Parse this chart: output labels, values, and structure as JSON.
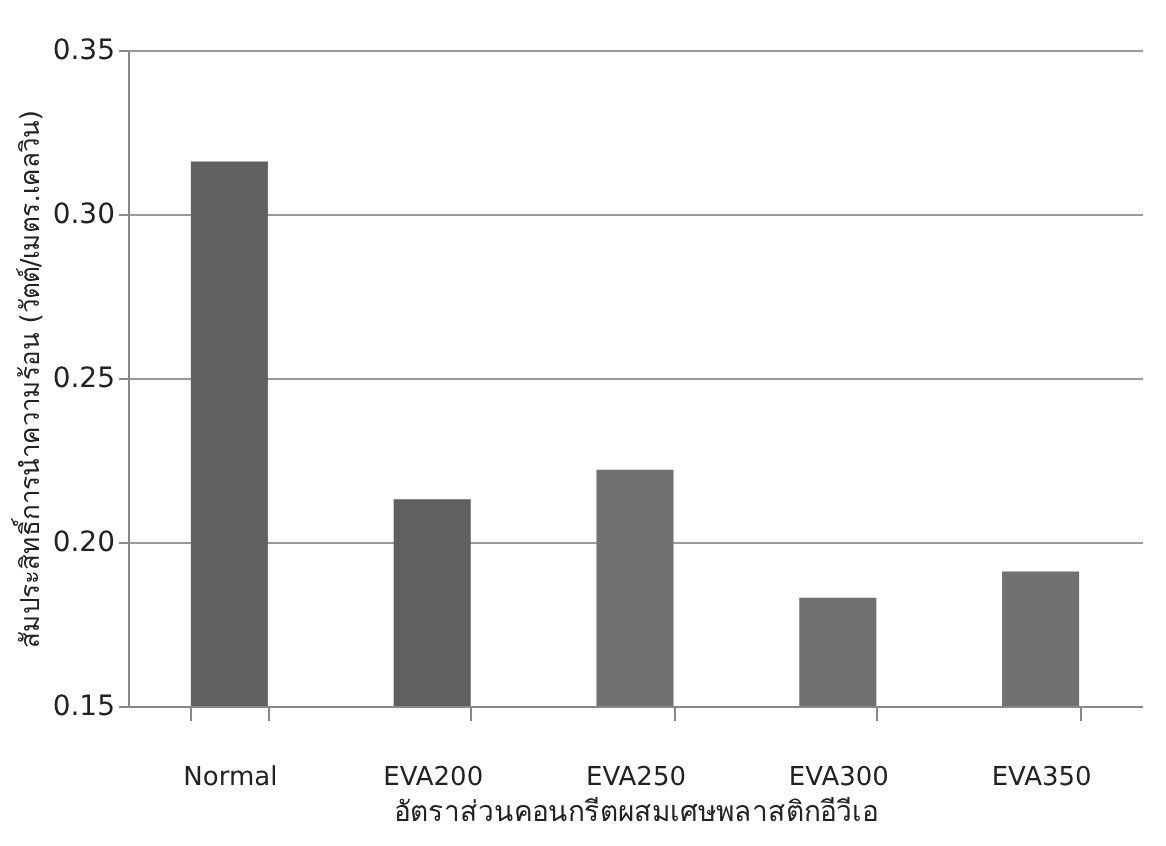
{
  "chart_data": {
    "type": "bar",
    "categories": [
      "Normal",
      "EVA200",
      "EVA250",
      "EVA300",
      "EVA350"
    ],
    "values": [
      0.316,
      0.213,
      0.222,
      0.183,
      0.191
    ],
    "colors": [
      "#606060",
      "#606060",
      "#717171",
      "#717171",
      "#717171"
    ],
    "xlabel": "อัตราส่วนคอนกรีตผสมเศษพลาสติกอีวีเอ",
    "ylabel": "สัมประสิทธิ์การนำความร้อน (วัตต์/เมตร.เคลวิน)",
    "ylim": [
      0.15,
      0.35
    ],
    "yticks": [
      {
        "value": 0.15,
        "label": "0.15"
      },
      {
        "value": 0.2,
        "label": "0.20"
      },
      {
        "value": 0.25,
        "label": "0.25"
      },
      {
        "value": 0.3,
        "label": "0.30"
      },
      {
        "value": 0.35,
        "label": "0.35"
      }
    ],
    "grid": "y"
  }
}
